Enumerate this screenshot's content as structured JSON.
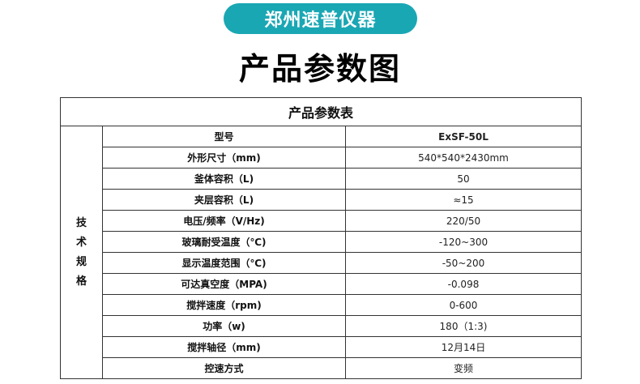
{
  "header": {
    "brand": "郑州速普仪器",
    "title": "产品参数图"
  },
  "table": {
    "caption": "产品参数表",
    "group_label": "技术规格",
    "rows": [
      {
        "param": "型号",
        "value": "ExSF-50L"
      },
      {
        "param": "外形尺寸（mm)",
        "value": "540*540*2430mm"
      },
      {
        "param": "釜体容积（L)",
        "value": "50"
      },
      {
        "param": "夹层容积（L)",
        "value": "≈15"
      },
      {
        "param": "电压/频率（V/Hz)",
        "value": "220/50"
      },
      {
        "param": "玻璃耐受温度（℃)",
        "value": "-120~300"
      },
      {
        "param": "显示温度范围（℃)",
        "value": "-50~200"
      },
      {
        "param": "可达真空度（MPA)",
        "value": "-0.098"
      },
      {
        "param": "搅拌速度（rpm)",
        "value": "0-600"
      },
      {
        "param": "功率（w)",
        "value": "180（1:3)"
      },
      {
        "param": "搅拌轴径（mm)",
        "value": "12月14日"
      },
      {
        "param": "控速方式",
        "value": "变频"
      }
    ]
  }
}
